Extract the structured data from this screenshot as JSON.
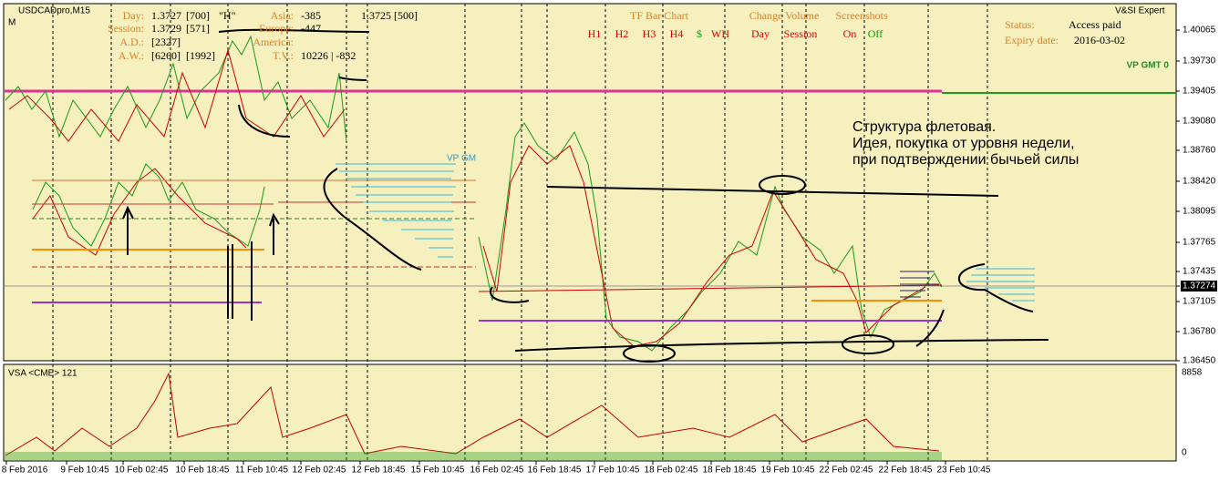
{
  "header": {
    "symbol": "USDCADpro,M15",
    "mark": "M",
    "expert": "V&SI Expert"
  },
  "info_panel": {
    "day": {
      "label": "Day:",
      "price": "1.3727",
      "count": "[700]",
      "flag": "\"H\""
    },
    "session": {
      "label": "Session:",
      "price": "1.3729",
      "count": "[571]"
    },
    "ad": {
      "label": "A.D.:",
      "value": "[2327]"
    },
    "aw": {
      "label": "A.W.:",
      "value": "[6260]",
      "value2": "[1992]"
    },
    "asia": {
      "label": "Asia:",
      "value": "-385",
      "value2": "1.3725 [500]"
    },
    "europe": {
      "label": "Europe:",
      "value": "-447"
    },
    "america": {
      "label": "America:"
    },
    "tv": {
      "label": "T.V.:",
      "value": "10226 | -832"
    }
  },
  "tf_bar_chart": {
    "title": "TF Bar Chart",
    "buttons": [
      "H1",
      "H2",
      "H3",
      "H4",
      "$",
      "WH"
    ]
  },
  "change_volume": {
    "title": "Change Volume",
    "buttons": [
      "Day",
      "Session"
    ]
  },
  "screenshots": {
    "title": "Screenshots",
    "buttons": [
      "On",
      "Off"
    ]
  },
  "status": {
    "status_label": "Status:",
    "status_value": "Access paid",
    "expiry_label": "Expiry date:",
    "expiry_value": "2016-03-02"
  },
  "vp_labels": {
    "gmt": "VP GMT 0",
    "gm": "VP GM"
  },
  "note": [
    "Структура флетовая.",
    "Идея, покупка от уровня недели,",
    "при подтверждении бычьей силы"
  ],
  "price_axis": [
    "1.40065",
    "1.39730",
    "1.39405",
    "1.39080",
    "1.38760",
    "1.38420",
    "1.38095",
    "1.37765",
    "1.37435",
    "1.37274",
    "1.37105",
    "1.36780",
    "1.36450"
  ],
  "volume_panel": {
    "title": "VSA <CME> 121",
    "max": "8858",
    "min": "0"
  },
  "time_axis": [
    "8 Feb 2016",
    "9 Feb 10:45",
    "10 Feb 02:45",
    "10 Feb 18:45",
    "11 Feb 10:45",
    "12 Feb 02:45",
    "12 Feb 18:45",
    "15 Feb 10:45",
    "16 Feb 02:45",
    "16 Feb 18:45",
    "17 Feb 10:45",
    "18 Feb 02:45",
    "18 Feb 18:45",
    "19 Feb 10:45",
    "22 Feb 02:45",
    "22 Feb 18:45",
    "23 Feb 10:45"
  ]
}
